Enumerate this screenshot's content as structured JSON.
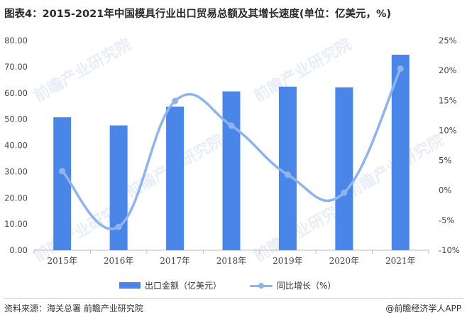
{
  "title": "图表4：2015-2021年中国模具行业出口贸易总额及其增长速度(单位：亿美元，%)",
  "footer": {
    "source": "资料来源：海关总署 前瞻产业研究院",
    "brand": "@前瞻经济学人APP"
  },
  "watermark": "前瞻产业研究院",
  "colors": {
    "bar": "#4a86e8",
    "line": "#8fb4ec"
  },
  "chart_data": {
    "type": "bar",
    "categories": [
      "2015年",
      "2016年",
      "2017年",
      "2018年",
      "2019年",
      "2020年",
      "2021年"
    ],
    "series": [
      {
        "name": "出口金额（亿美元）",
        "type": "bar",
        "axis": "left",
        "values": [
          50.7,
          47.6,
          54.8,
          60.6,
          62.4,
          62.1,
          74.6
        ]
      },
      {
        "name": "同比增长（%）",
        "type": "line",
        "axis": "right",
        "values": [
          3.2,
          -6.1,
          14.9,
          10.8,
          2.6,
          -0.4,
          20.3
        ]
      }
    ],
    "yleft": {
      "min": 0,
      "max": 80,
      "ticks": [
        "0.00",
        "10.00",
        "20.00",
        "30.00",
        "40.00",
        "50.00",
        "60.00",
        "70.00",
        "80.00"
      ]
    },
    "yright": {
      "min": -10,
      "max": 25,
      "ticks": [
        "-10%",
        "-5%",
        "0%",
        "5%",
        "10%",
        "15%",
        "20%",
        "25%"
      ]
    },
    "grid": false,
    "legend_position": "bottom"
  }
}
